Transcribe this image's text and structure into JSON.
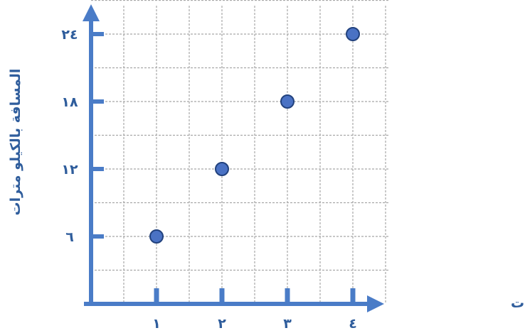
{
  "chart_data": {
    "type": "scatter",
    "xlabel": "الزمن بالساعات",
    "ylabel": "المسافة بالكيلو مترات",
    "x_ticks": [
      {
        "value": 1,
        "label": "١"
      },
      {
        "value": 2,
        "label": "٢"
      },
      {
        "value": 3,
        "label": "٣"
      },
      {
        "value": 4,
        "label": "٤"
      }
    ],
    "y_ticks": [
      {
        "value": 6,
        "label": "٦"
      },
      {
        "value": 12,
        "label": "١٢"
      },
      {
        "value": 18,
        "label": "١٨"
      },
      {
        "value": 24,
        "label": "٢٤"
      }
    ],
    "points": [
      {
        "x": 1,
        "y": 6
      },
      {
        "x": 2,
        "y": 12
      },
      {
        "x": 3,
        "y": 18
      },
      {
        "x": 4,
        "y": 24
      }
    ],
    "xlim": [
      0,
      4.5
    ],
    "ylim": [
      0,
      27
    ],
    "grid": true,
    "colors": {
      "axis": "#4a7cc7",
      "point_fill": "#4a72c4",
      "point_stroke": "#22427e",
      "grid": "#a8a8a8",
      "text": "#2f5d9c"
    }
  }
}
